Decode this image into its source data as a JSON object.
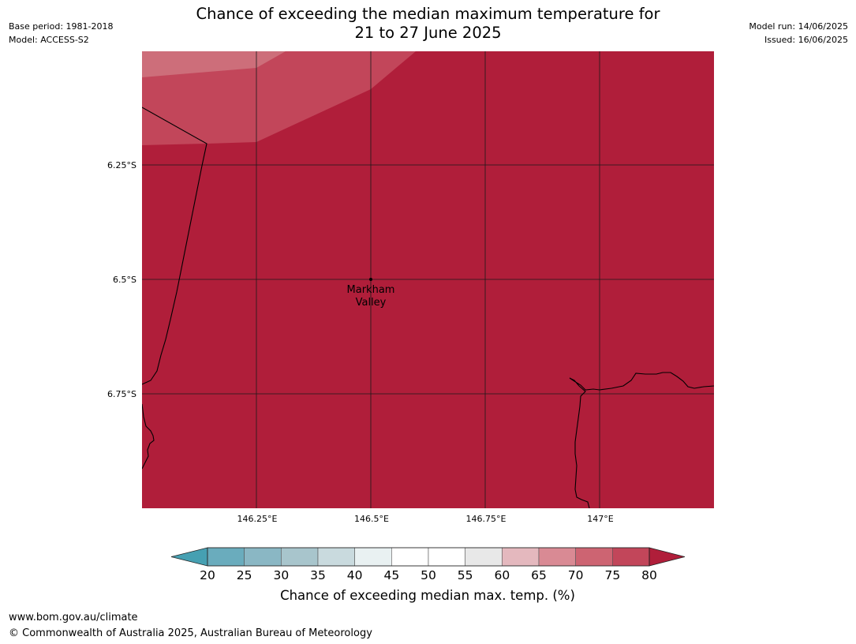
{
  "header": {
    "base_period": "Base period: 1981-2018",
    "model": "Model: ACCESS-S2",
    "model_run": "Model run: 14/06/2025",
    "issued": "Issued: 16/06/2025"
  },
  "title": {
    "line1": "Chance of exceeding the median maximum temperature for",
    "line2": "21 to 27 June 2025"
  },
  "map": {
    "latitude_labels": [
      "6.25°S",
      "6.5°S",
      "6.75°S"
    ],
    "longitude_labels": [
      "146.25°E",
      "146.5°E",
      "146.75°E",
      "147°E"
    ],
    "place": {
      "name_line1": "Markham",
      "name_line2": "Valley"
    },
    "colors": {
      "above_80": "#b01e3a",
      "band_75_80": "#c2465a",
      "band_70_75": "#cd6e7a"
    }
  },
  "colorbar": {
    "ticks": [
      "20",
      "25",
      "30",
      "35",
      "40",
      "45",
      "50",
      "55",
      "60",
      "65",
      "70",
      "75",
      "80"
    ],
    "colors": [
      "#46a0b2",
      "#6aacbd",
      "#8ab7c4",
      "#a8c5cc",
      "#c9dade",
      "#e9f1f2",
      "#ffffff",
      "#ffffff",
      "#e8e8e8",
      "#e4b8be",
      "#d98a94",
      "#cd6472",
      "#c2465a",
      "#b01e3a"
    ],
    "label": "Chance of exceeding median max. temp. (%)"
  },
  "footer": {
    "url": "www.bom.gov.au/climate",
    "copyright": "© Commonwealth of Australia 2025, Australian Bureau of Meteorology"
  }
}
